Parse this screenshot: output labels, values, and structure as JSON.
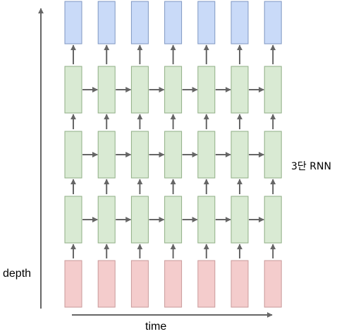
{
  "labels": {
    "depth": "depth",
    "time": "time",
    "layers": "3단 RNN"
  },
  "grid": {
    "time_steps": 7,
    "hidden_layers": 3
  },
  "colors": {
    "output_fill": "#c9daf8",
    "output_stroke": "#7f97c2",
    "hidden_fill": "#d9ead3",
    "hidden_stroke": "#8fae84",
    "input_fill": "#f4cccc",
    "input_stroke": "#c99a9a",
    "arrow": "#666666"
  }
}
